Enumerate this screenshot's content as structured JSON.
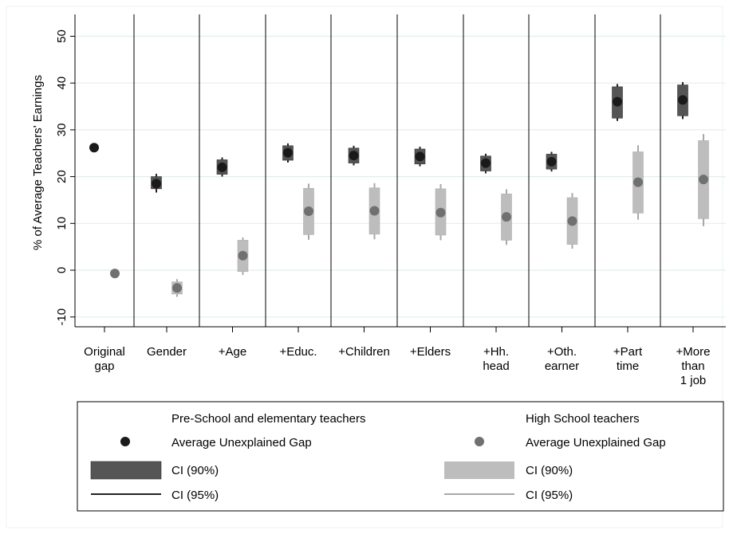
{
  "chart_data": {
    "type": "scatter",
    "ylabel": "% of Average Teachers' Earnings",
    "ylim": [
      -12,
      52
    ],
    "yticks": [
      -10,
      0,
      10,
      20,
      30,
      40,
      50
    ],
    "grid": true,
    "categories": [
      [
        "Original",
        "gap"
      ],
      [
        "Gender"
      ],
      [
        "+Age"
      ],
      [
        "+Educ."
      ],
      [
        "+Children"
      ],
      [
        "+Elders"
      ],
      [
        "+Hh.",
        "head"
      ],
      [
        "+Oth.",
        "earner"
      ],
      [
        "+Part",
        "time"
      ],
      [
        "+More",
        "than",
        "1 job"
      ]
    ],
    "series": [
      {
        "name": "Pre-School and elementary teachers",
        "color": "#1a1a1a",
        "ci_color": "#555555",
        "line_color": "#222222",
        "points": [
          26.2,
          18.5,
          22.0,
          25.1,
          24.5,
          24.3,
          22.9,
          23.2,
          36.0,
          36.4
        ],
        "ci90_low": [
          null,
          17.4,
          20.5,
          23.5,
          22.9,
          22.7,
          21.2,
          21.6,
          32.5,
          33.0
        ],
        "ci90_high": [
          null,
          20.0,
          23.6,
          26.6,
          26.1,
          25.9,
          24.4,
          24.8,
          39.2,
          39.6
        ],
        "ci95_low": [
          null,
          16.6,
          20.0,
          23.0,
          22.4,
          22.2,
          20.7,
          21.1,
          31.9,
          32.3
        ],
        "ci95_high": [
          null,
          20.6,
          24.1,
          27.1,
          26.6,
          26.4,
          24.9,
          25.3,
          39.8,
          40.2
        ]
      },
      {
        "name": "High School teachers",
        "color": "#707070",
        "ci_color": "#bdbdbd",
        "line_color": "#a8a8a8",
        "points": [
          -0.7,
          -3.8,
          3.1,
          12.6,
          12.7,
          12.3,
          11.4,
          10.5,
          18.8,
          19.4
        ],
        "ci90_low": [
          null,
          -5.1,
          -0.3,
          7.6,
          7.7,
          7.5,
          6.4,
          5.5,
          12.2,
          11.0
        ],
        "ci90_high": [
          null,
          -2.5,
          6.4,
          17.5,
          17.6,
          17.4,
          16.3,
          15.5,
          25.3,
          27.7
        ],
        "ci95_low": [
          null,
          -5.7,
          -1.0,
          6.5,
          6.6,
          6.4,
          5.4,
          4.6,
          10.8,
          9.4
        ],
        "ci95_high": [
          null,
          -1.9,
          7.0,
          18.5,
          18.6,
          18.4,
          17.3,
          16.5,
          26.7,
          29.1
        ]
      }
    ],
    "legend": {
      "placement": "bottom",
      "items": {
        "left_header": "Pre-School and elementary teachers",
        "right_header": "High School teachers",
        "point_label": "Average Unexplained Gap",
        "ci90_label": "CI (90%)",
        "ci95_label": "CI (95%)"
      }
    }
  }
}
